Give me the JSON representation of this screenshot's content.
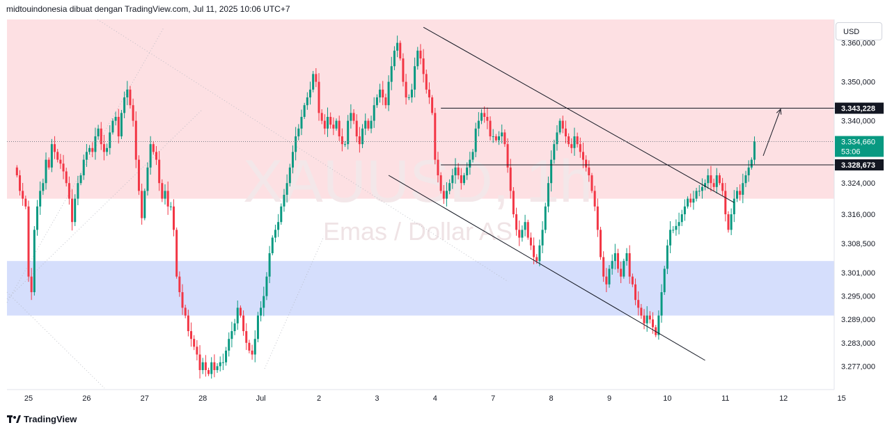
{
  "header": {
    "attribution": "midtouindonesia dibuat dengan TradingView.com, Jul 11, 2025 10:06 UTC+7"
  },
  "watermark": {
    "symbol": "XAUUSD, 1h",
    "description": "Emas / Dollar AS"
  },
  "currency_label": "USD",
  "footer": {
    "brand": "TradingView"
  },
  "colors": {
    "up": "#089981",
    "down": "#f23645",
    "supply_zone": "#fde0e3",
    "demand_zone": "#d5defc",
    "line": "#131722"
  },
  "price_labels": {
    "upper_level": "3.343,228",
    "current_price": "3.334,660",
    "countdown": "53:06",
    "lower_level": "3.328,673"
  },
  "chart_data": {
    "type": "candlestick",
    "title": "",
    "xlabel": "",
    "ylabel": "",
    "ylim": [
      3271000,
      3366000
    ],
    "y_ticks": [
      {
        "v": 3360000,
        "label": "3.360,000"
      },
      {
        "v": 3350000,
        "label": "3.350,000"
      },
      {
        "v": 3340000,
        "label": "3.340,000"
      },
      {
        "v": 3324000,
        "label": "3.324,000"
      },
      {
        "v": 3316000,
        "label": "3.316,000"
      },
      {
        "v": 3308500,
        "label": "3.308,500"
      },
      {
        "v": 3301000,
        "label": "3.301,000"
      },
      {
        "v": 3295000,
        "label": "3.295,000"
      },
      {
        "v": 3289000,
        "label": "3.289,000"
      },
      {
        "v": 3283000,
        "label": "3.283,000"
      },
      {
        "v": 3277000,
        "label": "3.277,000"
      }
    ],
    "x_ticks": [
      {
        "i": 4,
        "label": "25"
      },
      {
        "i": 24,
        "label": "26"
      },
      {
        "i": 44,
        "label": "27"
      },
      {
        "i": 64,
        "label": "28"
      },
      {
        "i": 84,
        "label": "Jul"
      },
      {
        "i": 104,
        "label": "2"
      },
      {
        "i": 124,
        "label": "3"
      },
      {
        "i": 144,
        "label": "4"
      },
      {
        "i": 164,
        "label": "7"
      },
      {
        "i": 184,
        "label": "8"
      },
      {
        "i": 204,
        "label": "9"
      },
      {
        "i": 224,
        "label": "10"
      },
      {
        "i": 244,
        "label": "11"
      },
      {
        "i": 264,
        "label": "12"
      },
      {
        "i": 284,
        "label": "15"
      }
    ],
    "closes": [
      3326000,
      3322000,
      3320000,
      3318000,
      3300000,
      3296000,
      3312000,
      3318000,
      3322000,
      3324000,
      3330000,
      3328000,
      3334000,
      3332000,
      3330000,
      3329000,
      3327000,
      3324000,
      3320000,
      3314000,
      3320000,
      3324000,
      3326000,
      3330000,
      3332000,
      3333000,
      3332000,
      3336000,
      3338000,
      3334000,
      3332000,
      3333000,
      3337000,
      3340000,
      3341000,
      3336000,
      3342000,
      3346000,
      3348000,
      3344000,
      3340000,
      3330000,
      3322000,
      3315000,
      3322000,
      3328000,
      3334000,
      3332000,
      3330000,
      3324000,
      3320000,
      3322000,
      3318000,
      3318000,
      3312000,
      3300000,
      3296000,
      3292000,
      3290000,
      3286000,
      3284000,
      3282000,
      3280000,
      3276000,
      3278000,
      3276000,
      3275000,
      3278000,
      3276000,
      3277000,
      3278000,
      3278000,
      3281000,
      3284000,
      3286000,
      3288000,
      3292000,
      3290000,
      3286000,
      3283000,
      3281000,
      3280000,
      3284000,
      3290000,
      3292000,
      3295000,
      3300000,
      3306000,
      3310000,
      3312000,
      3314000,
      3318000,
      3321000,
      3324000,
      3328000,
      3332000,
      3336000,
      3338000,
      3341000,
      3344000,
      3346000,
      3348000,
      3352000,
      3350000,
      3342000,
      3340000,
      3338000,
      3341000,
      3339000,
      3338000,
      3340000,
      3336000,
      3334000,
      3334000,
      3340000,
      3342000,
      3340000,
      3336000,
      3334000,
      3338000,
      3340000,
      3338000,
      3340000,
      3344000,
      3346000,
      3348000,
      3346000,
      3344000,
      3350000,
      3354000,
      3358000,
      3360000,
      3356000,
      3350000,
      3346000,
      3346000,
      3348000,
      3354000,
      3358000,
      3356000,
      3352000,
      3348000,
      3346000,
      3342000,
      3330000,
      3326000,
      3322000,
      3320000,
      3322000,
      3324000,
      3326000,
      3328000,
      3326000,
      3324000,
      3326000,
      3328000,
      3330000,
      3332000,
      3338000,
      3340000,
      3342000,
      3341000,
      3340000,
      3336000,
      3336000,
      3335000,
      3336000,
      3337000,
      3334000,
      3328000,
      3322000,
      3316000,
      3312000,
      3310000,
      3312000,
      3314000,
      3310000,
      3308000,
      3305000,
      3304000,
      3308000,
      3312000,
      3318000,
      3324000,
      3330000,
      3334000,
      3337000,
      3340000,
      3338000,
      3336000,
      3334000,
      3333000,
      3336000,
      3334000,
      3332000,
      3330000,
      3328000,
      3326000,
      3322000,
      3318000,
      3312000,
      3305000,
      3300000,
      3298000,
      3302000,
      3304000,
      3306000,
      3302000,
      3300000,
      3304000,
      3306000,
      3300000,
      3298000,
      3294000,
      3292000,
      3290000,
      3288000,
      3290000,
      3289000,
      3287000,
      3285000,
      3290000,
      3296000,
      3302000,
      3308000,
      3312000,
      3312000,
      3313000,
      3314000,
      3316000,
      3318000,
      3320000,
      3319000,
      3320000,
      3322000,
      3322000,
      3323000,
      3324000,
      3326000,
      3324000,
      3323000,
      3326000,
      3324000,
      3322000,
      3316000,
      3312000,
      3316000,
      3320000,
      3322000,
      3321000,
      3324000,
      3326000,
      3328000,
      3330000,
      3334660
    ]
  },
  "drawings": [
    {
      "id": "channel-upper-line",
      "a": [
        140,
        3364000
      ],
      "b": [
        247,
        3319000
      ]
    },
    {
      "id": "channel-lower-line",
      "a": [
        128,
        3326000
      ],
      "b": [
        237,
        3278500
      ]
    },
    {
      "id": "resistance-line",
      "a": [
        146,
        3343228
      ],
      "b": [
        289,
        3343228
      ]
    },
    {
      "id": "support-line",
      "a": [
        146,
        3328673
      ],
      "b": [
        289,
        3328673
      ]
    }
  ],
  "zones": [
    {
      "id": "supply-zone",
      "from": 3366000,
      "to": 3320000
    },
    {
      "id": "demand-zone",
      "from": 3304000,
      "to": 3290000
    }
  ]
}
